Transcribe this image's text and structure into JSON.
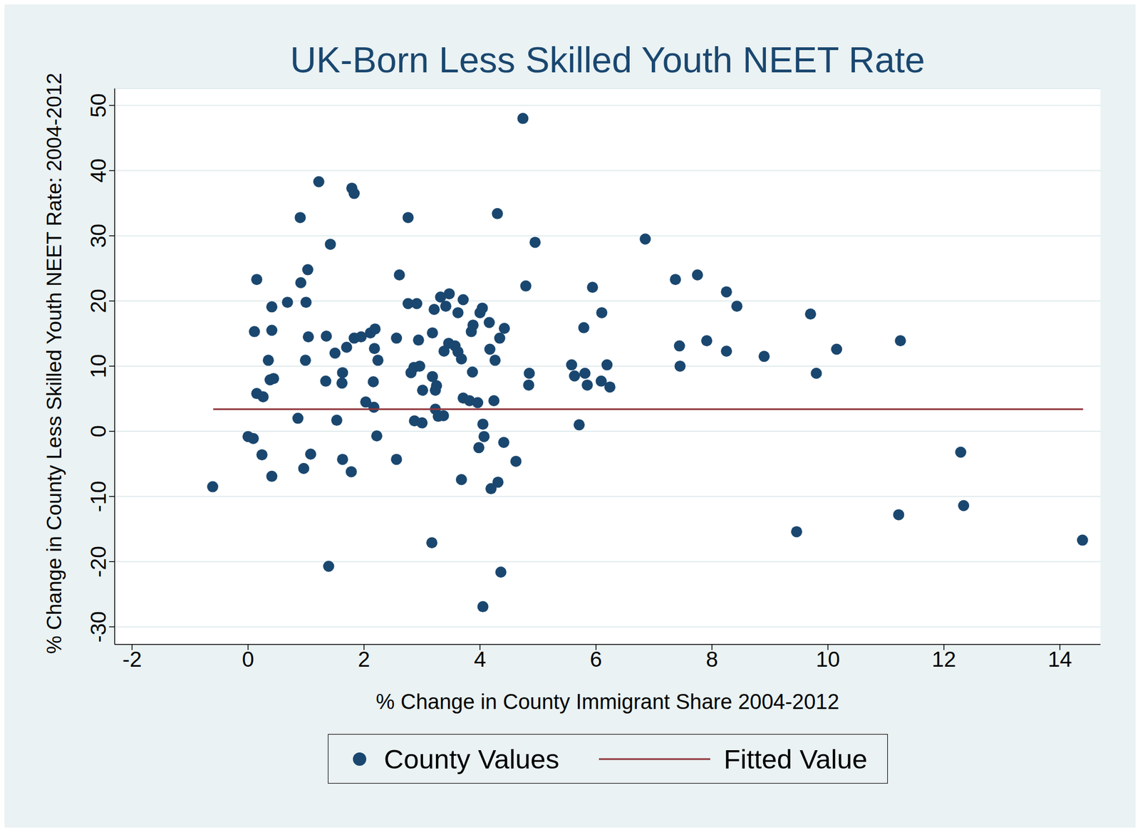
{
  "chart_data": {
    "type": "scatter",
    "title": "UK-Born Less Skilled Youth NEET Rate",
    "x_label": "% Change in County Immigrant Share 2004-2012",
    "y_label": "% Change in County Less Skilled Youth NEET Rate: 2004-2012",
    "xlim": [
      -2.3,
      14.7
    ],
    "ylim": [
      -32.7,
      52.6
    ],
    "xticks": [
      -2,
      0,
      2,
      4,
      6,
      8,
      10,
      12,
      14
    ],
    "yticks": [
      -30,
      -20,
      -10,
      0,
      10,
      20,
      30,
      40,
      50
    ],
    "grid": true,
    "legend": "bottom",
    "series": [
      {
        "name": "County Values",
        "type": "scatter",
        "marker": "circle",
        "color": "#1a476f",
        "x": [
          -0.61,
          0.0,
          0.09,
          0.24,
          0.41,
          0.11,
          0.15,
          0.15,
          0.26,
          0.35,
          0.38,
          0.44,
          0.41,
          0.41,
          0.68,
          0.86,
          0.9,
          0.91,
          0.96,
          1.0,
          0.99,
          1.03,
          1.04,
          1.08,
          1.22,
          1.34,
          1.35,
          1.39,
          1.42,
          1.5,
          1.53,
          1.63,
          1.62,
          1.63,
          1.7,
          1.79,
          1.78,
          1.83,
          1.83,
          1.95,
          2.03,
          2.11,
          2.16,
          2.17,
          2.19,
          2.22,
          2.24,
          2.18,
          2.56,
          2.56,
          2.61,
          2.76,
          2.76,
          2.81,
          2.87,
          2.91,
          2.94,
          2.86,
          3.0,
          3.01,
          2.96,
          3.18,
          3.18,
          3.21,
          3.23,
          3.23,
          3.25,
          3.17,
          3.28,
          3.32,
          3.37,
          3.38,
          3.41,
          3.47,
          3.46,
          3.57,
          3.62,
          3.62,
          3.68,
          3.68,
          3.71,
          3.71,
          3.82,
          3.85,
          3.87,
          3.88,
          3.96,
          3.98,
          4.0,
          4.04,
          4.05,
          4.07,
          4.05,
          4.16,
          4.17,
          4.19,
          4.24,
          4.26,
          4.3,
          4.31,
          4.34,
          4.36,
          4.41,
          4.42,
          4.62,
          4.74,
          4.79,
          4.85,
          4.84,
          4.95,
          5.58,
          5.63,
          5.71,
          5.79,
          5.81,
          5.85,
          5.94,
          6.09,
          6.1,
          6.19,
          6.24,
          6.85,
          7.37,
          7.44,
          7.45,
          7.75,
          7.91,
          8.25,
          8.25,
          8.43,
          8.9,
          9.46,
          9.7,
          9.8,
          10.15,
          11.22,
          11.25,
          12.29,
          12.34,
          14.39
        ],
        "values": [
          -8.5,
          -0.8,
          -1.1,
          -3.6,
          -6.9,
          15.3,
          23.3,
          5.8,
          5.3,
          10.9,
          7.9,
          8.1,
          19.1,
          15.5,
          19.8,
          2.0,
          32.8,
          22.8,
          -5.7,
          19.8,
          10.9,
          24.8,
          14.5,
          -3.5,
          38.3,
          7.7,
          14.6,
          -20.7,
          28.7,
          12.0,
          1.7,
          9.0,
          7.4,
          -4.3,
          12.9,
          37.3,
          -6.2,
          14.3,
          36.5,
          14.5,
          4.5,
          15.1,
          7.6,
          3.7,
          15.7,
          -0.7,
          10.9,
          12.7,
          -4.3,
          14.3,
          24.0,
          32.8,
          19.6,
          9.0,
          1.6,
          19.6,
          14.0,
          9.8,
          1.3,
          6.3,
          10.0,
          15.1,
          8.4,
          18.7,
          3.4,
          6.3,
          7.0,
          -17.1,
          2.3,
          20.6,
          2.4,
          12.3,
          19.2,
          21.1,
          13.5,
          13.1,
          18.2,
          12.2,
          11.1,
          -7.4,
          20.2,
          5.1,
          4.7,
          15.3,
          9.1,
          16.3,
          4.4,
          -2.5,
          18.2,
          18.9,
          1.1,
          -0.8,
          -26.9,
          16.7,
          12.6,
          -8.8,
          4.7,
          10.9,
          33.4,
          -7.8,
          14.3,
          -21.6,
          -1.7,
          15.8,
          -4.6,
          48.0,
          22.3,
          8.9,
          7.1,
          29.0,
          10.2,
          8.5,
          1.0,
          15.9,
          8.9,
          7.1,
          22.1,
          7.7,
          18.2,
          10.2,
          6.8,
          29.5,
          23.3,
          13.1,
          10.0,
          24.0,
          13.9,
          21.4,
          12.3,
          19.2,
          11.5,
          -15.4,
          18.0,
          8.9,
          12.6,
          -12.8,
          13.9,
          -3.2,
          -11.4,
          -16.7
        ]
      },
      {
        "name": "Fitted Value",
        "type": "line",
        "line_style": "solid",
        "color": "#90353b",
        "x": [
          -0.6,
          14.4
        ],
        "values": [
          3.4,
          3.4
        ]
      }
    ]
  }
}
